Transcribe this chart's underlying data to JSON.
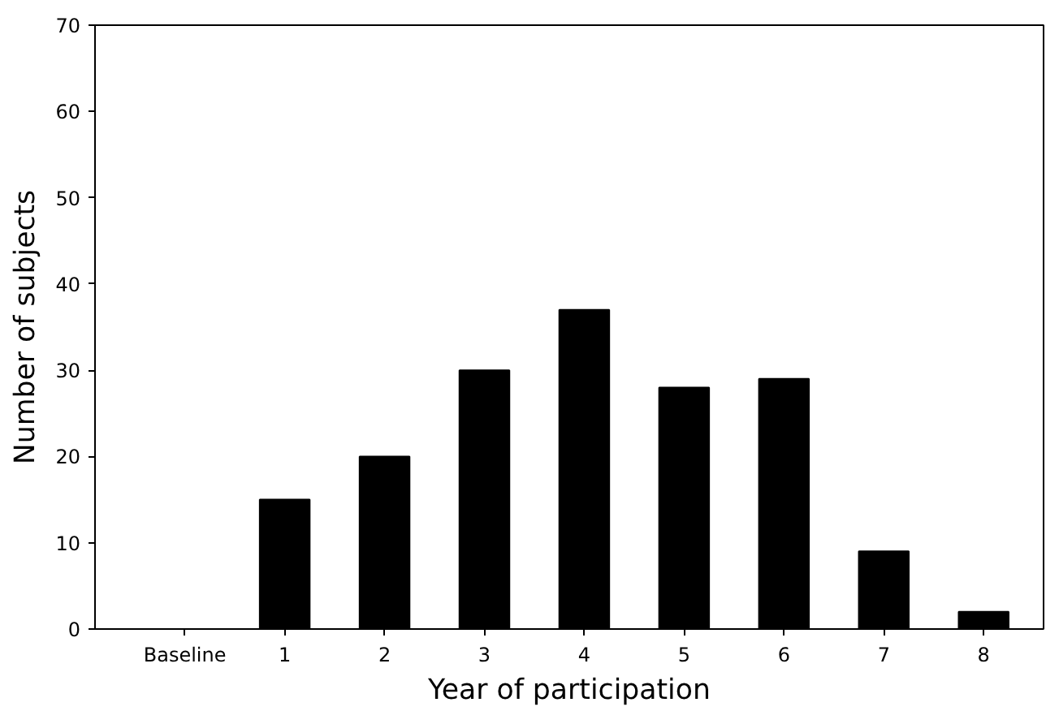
{
  "chart_data": {
    "type": "bar",
    "xlabel": "Year of participation",
    "ylabel": "Number of subjects",
    "categories": [
      "Baseline",
      "1",
      "2",
      "3",
      "4",
      "5",
      "6",
      "7",
      "8"
    ],
    "values": [
      0,
      15,
      20,
      30,
      37,
      28,
      29,
      9,
      2
    ],
    "color": "#000000",
    "ylim": [
      0,
      70
    ],
    "yticks": [
      0,
      10,
      20,
      30,
      40,
      50,
      60,
      70
    ],
    "grid": false
  }
}
